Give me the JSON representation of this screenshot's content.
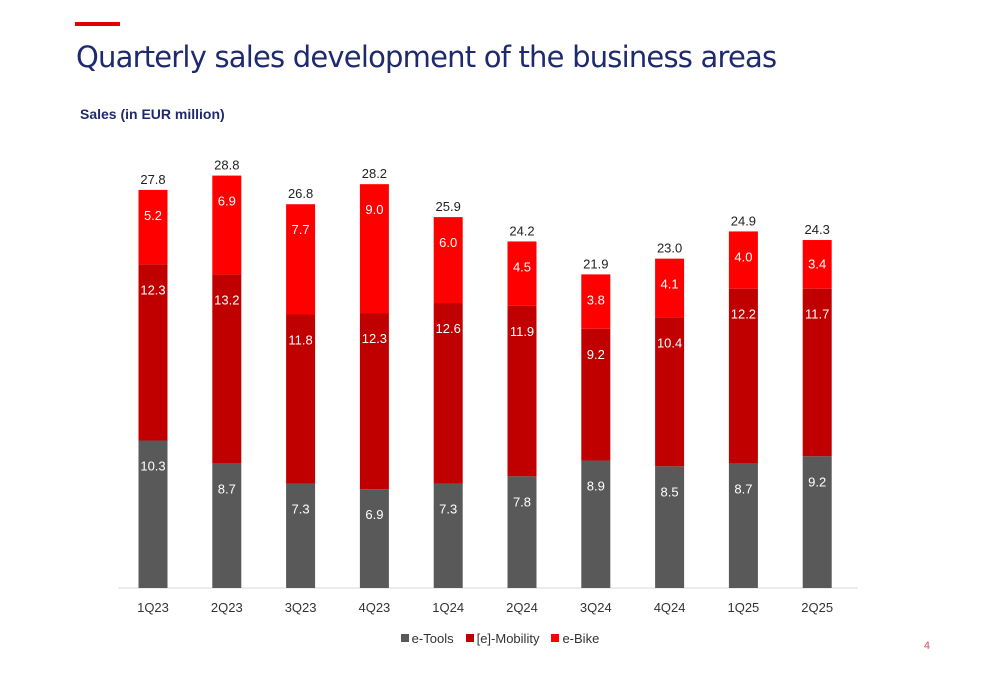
{
  "slide": {
    "title": "Quarterly sales development of the business areas",
    "subtitle": "Sales (in EUR million)",
    "page_number": "4",
    "accent_color": "#e00000"
  },
  "chart_data": {
    "type": "bar",
    "stacked": true,
    "categories": [
      "1Q23",
      "2Q23",
      "3Q23",
      "4Q23",
      "1Q24",
      "2Q24",
      "3Q24",
      "4Q24",
      "1Q25",
      "2Q25"
    ],
    "series": [
      {
        "name": "e-Tools",
        "color": "#595959",
        "values": [
          10.3,
          8.7,
          7.3,
          6.9,
          7.3,
          7.8,
          8.9,
          8.5,
          8.7,
          9.2
        ],
        "labels": [
          "10.3",
          "8.7",
          "7.3",
          "6.9",
          "7.3",
          "7.8",
          "8.9",
          "8.5",
          "8.7",
          "9.2"
        ]
      },
      {
        "name": "[e]-Mobility",
        "color": "#c00000",
        "values": [
          12.3,
          13.2,
          11.8,
          12.3,
          12.6,
          11.9,
          9.2,
          10.4,
          12.2,
          11.7
        ],
        "labels": [
          "12.3",
          "13.2",
          "11.8",
          "12.3",
          "12.6",
          "11.9",
          "9.2",
          "10.4",
          "12.2",
          "11.7"
        ]
      },
      {
        "name": "e-Bike",
        "color": "#ff0000",
        "values": [
          5.2,
          6.9,
          7.7,
          9.0,
          6.0,
          4.5,
          3.8,
          4.1,
          4.0,
          3.4
        ],
        "labels": [
          "5.2",
          "6.9",
          "7.7",
          "9.0",
          "6.0",
          "4.5",
          "3.8",
          "4.1",
          "4.0",
          "3.4"
        ]
      }
    ],
    "totals": [
      "27.8",
      "28.8",
      "26.8",
      "28.2",
      "25.9",
      "24.2",
      "21.9",
      "23.0",
      "24.9",
      "24.3"
    ],
    "ylim": [
      0,
      30
    ],
    "grid": false,
    "legend": "bottom"
  }
}
